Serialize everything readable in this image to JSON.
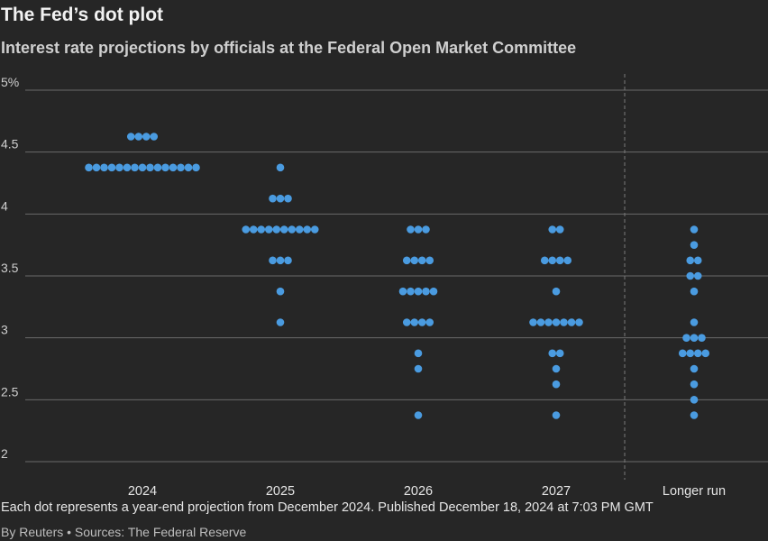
{
  "header": {
    "title": "The Fed’s dot plot",
    "subtitle": "Interest rate projections by officials at the Federal Open Market Committee"
  },
  "footer": {
    "note": "Each dot represents a year-end projection from December 2024. Published December 18, 2024 at 7:03 PM GMT",
    "credit": "By Reuters • Sources: The Federal Reserve"
  },
  "colors": {
    "dot": "#4a9be0",
    "grid": "#6a6a6a",
    "background": "#262626"
  },
  "chart_data": {
    "type": "scatter",
    "title": "The Fed’s dot plot",
    "ylim": [
      2,
      5
    ],
    "yticks": [
      2,
      2.5,
      3,
      3.5,
      4,
      4.5,
      5
    ],
    "ytick_labels": [
      "2",
      "2.5",
      "3",
      "3.5",
      "4",
      "4.5",
      "5%"
    ],
    "categories": [
      "2024",
      "2025",
      "2026",
      "2027",
      "Longer run"
    ],
    "divider_after": "2027",
    "series": [
      {
        "name": "2024",
        "projections": [
          {
            "rate": 4.625,
            "count": 4
          },
          {
            "rate": 4.375,
            "count": 15
          }
        ]
      },
      {
        "name": "2025",
        "projections": [
          {
            "rate": 4.375,
            "count": 1
          },
          {
            "rate": 4.125,
            "count": 3
          },
          {
            "rate": 3.875,
            "count": 10
          },
          {
            "rate": 3.625,
            "count": 3
          },
          {
            "rate": 3.375,
            "count": 1
          },
          {
            "rate": 3.125,
            "count": 1
          }
        ]
      },
      {
        "name": "2026",
        "projections": [
          {
            "rate": 3.875,
            "count": 3
          },
          {
            "rate": 3.625,
            "count": 4
          },
          {
            "rate": 3.375,
            "count": 5
          },
          {
            "rate": 3.125,
            "count": 4
          },
          {
            "rate": 2.875,
            "count": 1
          },
          {
            "rate": 2.75,
            "count": 1
          },
          {
            "rate": 2.375,
            "count": 1
          }
        ]
      },
      {
        "name": "2027",
        "projections": [
          {
            "rate": 3.875,
            "count": 2
          },
          {
            "rate": 3.625,
            "count": 4
          },
          {
            "rate": 3.375,
            "count": 1
          },
          {
            "rate": 3.125,
            "count": 7
          },
          {
            "rate": 2.875,
            "count": 2
          },
          {
            "rate": 2.75,
            "count": 1
          },
          {
            "rate": 2.625,
            "count": 1
          },
          {
            "rate": 2.375,
            "count": 1
          }
        ]
      },
      {
        "name": "Longer run",
        "projections": [
          {
            "rate": 3.875,
            "count": 1
          },
          {
            "rate": 3.75,
            "count": 1
          },
          {
            "rate": 3.625,
            "count": 2
          },
          {
            "rate": 3.5,
            "count": 2
          },
          {
            "rate": 3.375,
            "count": 1
          },
          {
            "rate": 3.125,
            "count": 1
          },
          {
            "rate": 3.0,
            "count": 3
          },
          {
            "rate": 2.875,
            "count": 4
          },
          {
            "rate": 2.75,
            "count": 1
          },
          {
            "rate": 2.625,
            "count": 1
          },
          {
            "rate": 2.5,
            "count": 1
          },
          {
            "rate": 2.375,
            "count": 1
          }
        ]
      }
    ]
  }
}
